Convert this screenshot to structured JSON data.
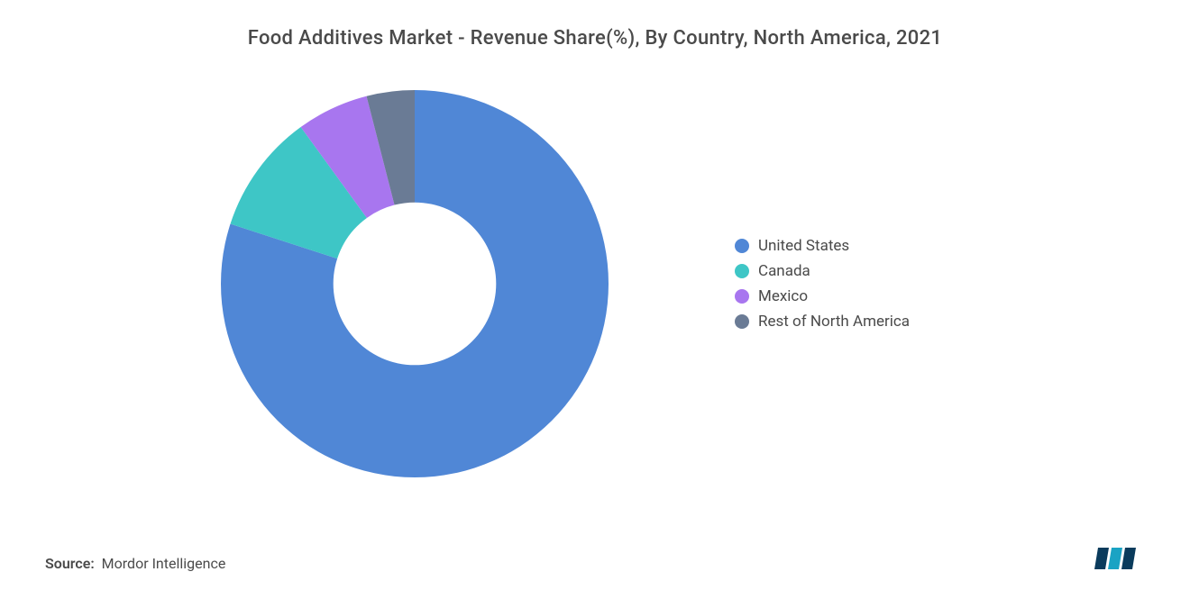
{
  "chart": {
    "type": "donut",
    "title": "Food Additives Market - Revenue Share(%), By Country, North America, 2021",
    "title_fontsize": 22,
    "title_color": "#4a4a4a",
    "background_color": "#ffffff",
    "inner_radius_ratio": 0.42,
    "outer_radius": 215,
    "slices": [
      {
        "label": "United States",
        "value": 80,
        "color": "#5087d6"
      },
      {
        "label": "Canada",
        "value": 10,
        "color": "#3ec6c6"
      },
      {
        "label": "Mexico",
        "value": 6,
        "color": "#a876ef"
      },
      {
        "label": "Rest of North America",
        "value": 4,
        "color": "#6a7b95"
      }
    ],
    "legend": {
      "position": "right",
      "fontsize": 17,
      "text_color": "#4a4a4a",
      "swatch_shape": "circle",
      "swatch_size": 16
    }
  },
  "source": {
    "prefix": "Source:",
    "text": "Mordor Intelligence",
    "fontsize": 16,
    "color": "#4a4a4a"
  },
  "logo": {
    "bars": [
      "#0a3b5c",
      "#1aa3c4",
      "#0a3b5c"
    ],
    "text_color": "#1aa3c4"
  }
}
